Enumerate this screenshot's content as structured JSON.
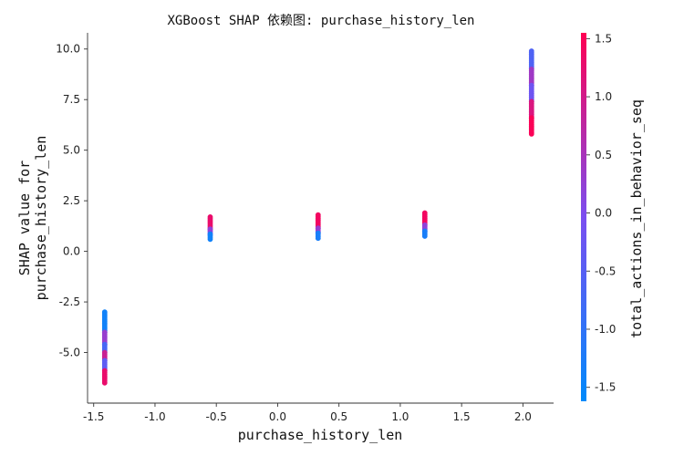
{
  "chart_data": {
    "type": "scatter",
    "title": "XGBoost SHAP 依赖图: purchase_history_len",
    "xlabel": "purchase_history_len",
    "ylabel_lines": [
      "SHAP value for",
      "purchase_history_len"
    ],
    "xlim": [
      -1.55,
      2.25
    ],
    "ylim": [
      -7.5,
      10.8
    ],
    "xticks": [
      -1.5,
      -1.0,
      -0.5,
      0.0,
      0.5,
      1.0,
      1.5,
      2.0
    ],
    "xtick_labels": [
      "-1.5",
      "-1.0",
      "-0.5",
      "0.0",
      "0.5",
      "1.0",
      "1.5",
      "2.0"
    ],
    "yticks": [
      -5.0,
      -2.5,
      0.0,
      2.5,
      5.0,
      7.5,
      10.0
    ],
    "ytick_labels": [
      "-5.0",
      "-2.5",
      "0.0",
      "2.5",
      "5.0",
      "7.5",
      "10.0"
    ],
    "colorbar": {
      "label": "total_actions_in_behavior_seq",
      "range": [
        -1.62,
        1.55
      ],
      "ticks": [
        -1.5,
        -1.0,
        -0.5,
        0.0,
        0.5,
        1.0,
        1.5
      ],
      "tick_labels": [
        "-1.5",
        "-1.0",
        "-0.5",
        "0.0",
        "0.5",
        "1.0",
        "1.5"
      ],
      "colors": [
        "#008afb",
        "#7b4ef0",
        "#ff0052"
      ]
    },
    "clusters": [
      {
        "x": -1.41,
        "y_min": -6.5,
        "y_max": -3.0,
        "color_segments": [
          {
            "y0": -3.0,
            "y1": -4.0,
            "c": -1.4
          },
          {
            "y0": -4.0,
            "y1": -4.6,
            "c": 0.3
          },
          {
            "y0": -4.6,
            "y1": -5.0,
            "c": -0.7
          },
          {
            "y0": -5.0,
            "y1": -5.4,
            "c": 0.9
          },
          {
            "y0": -5.4,
            "y1": -5.9,
            "c": -0.4
          },
          {
            "y0": -5.9,
            "y1": -6.5,
            "c": 1.3
          }
        ]
      },
      {
        "x": -0.55,
        "y_min": 0.6,
        "y_max": 1.7,
        "color_segments": [
          {
            "y0": 1.7,
            "y1": 1.1,
            "c": 1.3
          },
          {
            "y0": 1.1,
            "y1": 0.85,
            "c": 0.2
          },
          {
            "y0": 0.85,
            "y1": 0.6,
            "c": -1.4
          }
        ]
      },
      {
        "x": 0.33,
        "y_min": 0.65,
        "y_max": 1.8,
        "color_segments": [
          {
            "y0": 1.8,
            "y1": 1.15,
            "c": 1.4
          },
          {
            "y0": 1.15,
            "y1": 0.9,
            "c": 0.3
          },
          {
            "y0": 0.9,
            "y1": 0.65,
            "c": -1.3
          }
        ]
      },
      {
        "x": 1.2,
        "y_min": 0.75,
        "y_max": 1.9,
        "color_segments": [
          {
            "y0": 1.9,
            "y1": 1.3,
            "c": 1.4
          },
          {
            "y0": 1.3,
            "y1": 1.0,
            "c": 0.2
          },
          {
            "y0": 1.0,
            "y1": 0.75,
            "c": -1.3
          }
        ]
      },
      {
        "x": 2.07,
        "y_min": 5.8,
        "y_max": 9.9,
        "color_segments": [
          {
            "y0": 9.9,
            "y1": 9.0,
            "c": -0.6
          },
          {
            "y0": 9.0,
            "y1": 8.2,
            "c": 0.4
          },
          {
            "y0": 8.2,
            "y1": 7.4,
            "c": -0.2
          },
          {
            "y0": 7.4,
            "y1": 6.6,
            "c": 1.1
          },
          {
            "y0": 6.6,
            "y1": 5.8,
            "c": 1.5
          }
        ]
      }
    ]
  }
}
